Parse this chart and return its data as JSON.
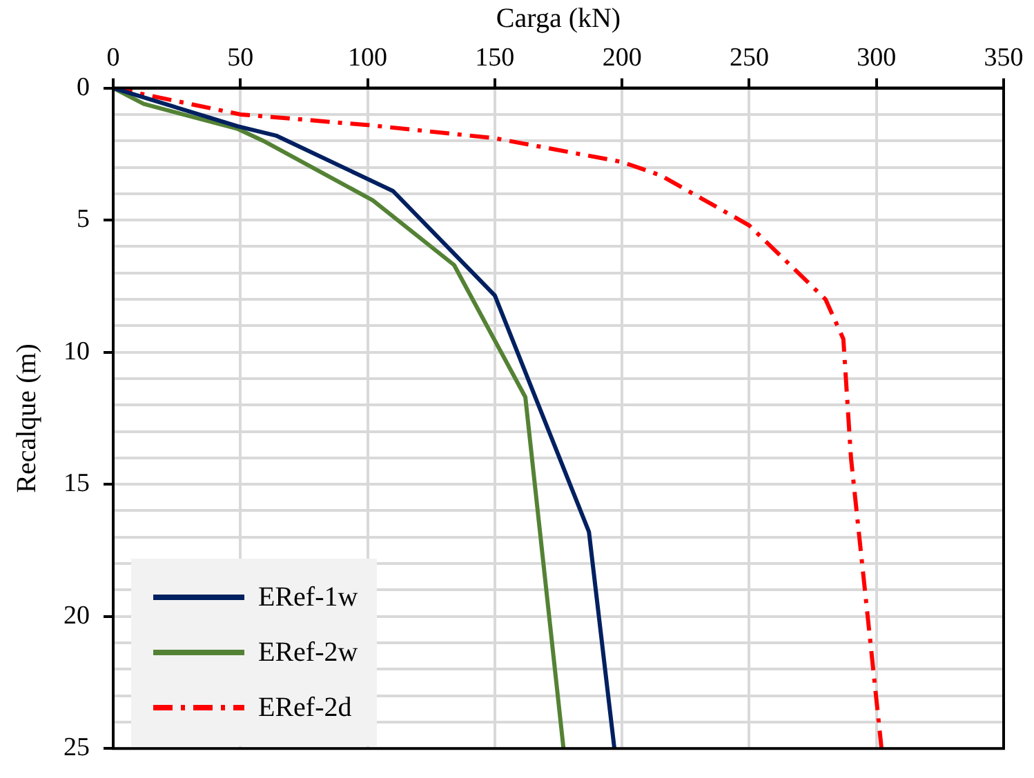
{
  "chart_data": {
    "type": "line",
    "xlabel": "Carga (kN)",
    "ylabel": "Recalque (m)",
    "xlim": [
      0,
      350
    ],
    "xticks": [
      0,
      50,
      100,
      150,
      200,
      250,
      300,
      350
    ],
    "ylim": [
      25,
      0
    ],
    "yticks": [
      0,
      {
        "value": 1,
        "label": null
      },
      {
        "value": 2,
        "label": null
      },
      {
        "value": 3,
        "label": null
      },
      {
        "value": 4,
        "label": null
      },
      5,
      {
        "value": 6,
        "label": null
      },
      {
        "value": 7,
        "label": null
      },
      {
        "value": 8,
        "label": null
      },
      {
        "value": 9,
        "label": null
      },
      10,
      {
        "value": 11,
        "label": null
      },
      {
        "value": 12,
        "label": null
      },
      {
        "value": 13,
        "label": null
      },
      {
        "value": 14,
        "label": null
      },
      15,
      {
        "value": 16,
        "label": null
      },
      {
        "value": 17,
        "label": null
      },
      {
        "value": 18,
        "label": null
      },
      {
        "value": 19,
        "label": null
      },
      20,
      {
        "value": 21,
        "label": null
      },
      {
        "value": 22,
        "label": null
      },
      {
        "value": 23,
        "label": null
      },
      {
        "value": 24,
        "label": null
      },
      25
    ],
    "grid": true,
    "legend": "bottom left",
    "marker": "none",
    "series": [
      {
        "name": "ERef-1w",
        "color": "#002060",
        "line_style": "solid",
        "x": [
          0,
          49,
          64,
          110,
          150,
          187,
          197
        ],
        "values": [
          0,
          1.45,
          1.8,
          3.9,
          7.85,
          16.8,
          25
        ]
      },
      {
        "name": "ERef-2w",
        "color": "#548235",
        "line_style": "solid",
        "x": [
          0,
          12,
          49,
          59,
          102,
          134,
          162,
          177
        ],
        "values": [
          0,
          0.6,
          1.55,
          2.0,
          4.25,
          6.7,
          11.7,
          25
        ]
      },
      {
        "name": "ERef-2d",
        "color": "#ff0000",
        "line_style": "dashed",
        "x": [
          0,
          20,
          50,
          100,
          150,
          200,
          215,
          250,
          280,
          287,
          290,
          297,
          302
        ],
        "values": [
          0,
          0.4,
          1.0,
          1.4,
          1.9,
          2.8,
          3.3,
          5.2,
          8.0,
          9.5,
          14,
          20.4,
          25
        ]
      }
    ]
  }
}
